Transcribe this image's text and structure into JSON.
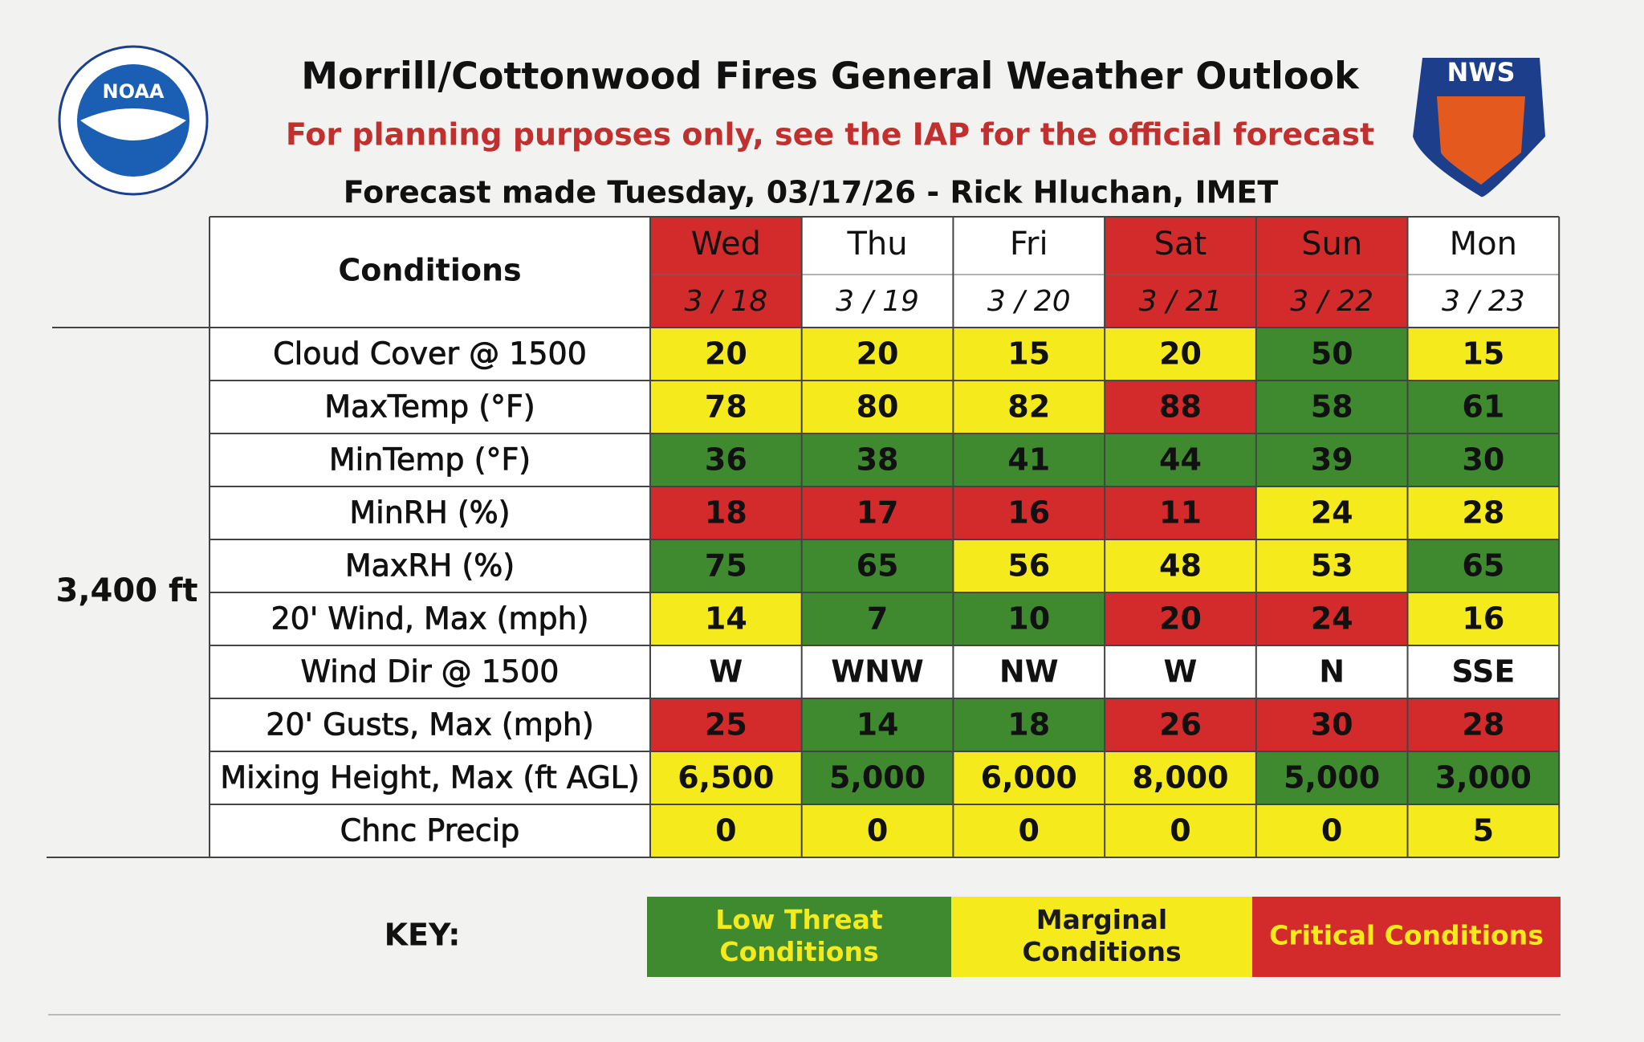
{
  "header": {
    "title": "Morrill/Cottonwood Fires General Weather Outlook",
    "subtitle": "For planning purposes only, see the IAP for the official forecast",
    "forecast_line": "Forecast made Tuesday, 03/17/26 - Rick Hluchan, IMET"
  },
  "logos": {
    "left": "NOAA",
    "right": "NWS"
  },
  "table": {
    "corner": "Conditions",
    "group_label": "3,400 ft",
    "days": [
      {
        "day": "Wed",
        "date": "3 / 18",
        "color": "#d32b2b"
      },
      {
        "day": "Thu",
        "date": "3 / 19",
        "color": "#ffffff"
      },
      {
        "day": "Fri",
        "date": "3 / 20",
        "color": "#ffffff"
      },
      {
        "day": "Sat",
        "date": "3 / 21",
        "color": "#d32b2b"
      },
      {
        "day": "Sun",
        "date": "3 / 22",
        "color": "#d32b2b"
      },
      {
        "day": "Mon",
        "date": "3 / 23",
        "color": "#ffffff"
      }
    ],
    "rows": [
      {
        "label": "Cloud Cover @ 1500",
        "cells": [
          "20",
          "20",
          "15",
          "20",
          "50",
          "15"
        ],
        "colors": [
          "#f5ea1c",
          "#f5ea1c",
          "#f5ea1c",
          "#f5ea1c",
          "#3f8a2f",
          "#f5ea1c"
        ]
      },
      {
        "label": "MaxTemp (°F)",
        "cells": [
          "78",
          "80",
          "82",
          "88",
          "58",
          "61"
        ],
        "colors": [
          "#f5ea1c",
          "#f5ea1c",
          "#f5ea1c",
          "#d32b2b",
          "#3f8a2f",
          "#3f8a2f"
        ]
      },
      {
        "label": "MinTemp (°F)",
        "cells": [
          "36",
          "38",
          "41",
          "44",
          "39",
          "30"
        ],
        "colors": [
          "#3f8a2f",
          "#3f8a2f",
          "#3f8a2f",
          "#3f8a2f",
          "#3f8a2f",
          "#3f8a2f"
        ]
      },
      {
        "label": "MinRH (%)",
        "cells": [
          "18",
          "17",
          "16",
          "11",
          "24",
          "28"
        ],
        "colors": [
          "#d32b2b",
          "#d32b2b",
          "#d32b2b",
          "#d32b2b",
          "#f5ea1c",
          "#f5ea1c"
        ]
      },
      {
        "label": "MaxRH (%)",
        "cells": [
          "75",
          "65",
          "56",
          "48",
          "53",
          "65"
        ],
        "colors": [
          "#3f8a2f",
          "#3f8a2f",
          "#f5ea1c",
          "#f5ea1c",
          "#f5ea1c",
          "#3f8a2f"
        ]
      },
      {
        "label": "20' Wind, Max (mph)",
        "cells": [
          "14",
          "7",
          "10",
          "20",
          "24",
          "16"
        ],
        "colors": [
          "#f5ea1c",
          "#3f8a2f",
          "#3f8a2f",
          "#d32b2b",
          "#d32b2b",
          "#f5ea1c"
        ]
      },
      {
        "label": "Wind Dir @ 1500",
        "cells": [
          "W",
          "WNW",
          "NW",
          "W",
          "N",
          "SSE"
        ],
        "colors": [
          "#ffffff",
          "#ffffff",
          "#ffffff",
          "#ffffff",
          "#ffffff",
          "#ffffff"
        ]
      },
      {
        "label": "20' Gusts, Max (mph)",
        "cells": [
          "25",
          "14",
          "18",
          "26",
          "30",
          "28"
        ],
        "colors": [
          "#d32b2b",
          "#3f8a2f",
          "#3f8a2f",
          "#d32b2b",
          "#d32b2b",
          "#d32b2b"
        ]
      },
      {
        "label": "Mixing Height, Max (ft AGL)",
        "cells": [
          "6,500",
          "5,000",
          "6,000",
          "8,000",
          "5,000",
          "3,000"
        ],
        "colors": [
          "#f5ea1c",
          "#3f8a2f",
          "#f5ea1c",
          "#f5ea1c",
          "#3f8a2f",
          "#3f8a2f"
        ]
      },
      {
        "label": "Chnc Precip",
        "cells": [
          "0",
          "0",
          "0",
          "0",
          "0",
          "5"
        ],
        "colors": [
          "#f5ea1c",
          "#f5ea1c",
          "#f5ea1c",
          "#f5ea1c",
          "#f5ea1c",
          "#f5ea1c"
        ]
      }
    ]
  },
  "key": {
    "label": "KEY:",
    "items": [
      {
        "text": "Low Threat Conditions",
        "color": "#3f8a2f"
      },
      {
        "text": "Marginal Conditions",
        "color": "#f5ea1c"
      },
      {
        "text": "Critical Conditions",
        "color": "#d32b2b"
      }
    ]
  }
}
